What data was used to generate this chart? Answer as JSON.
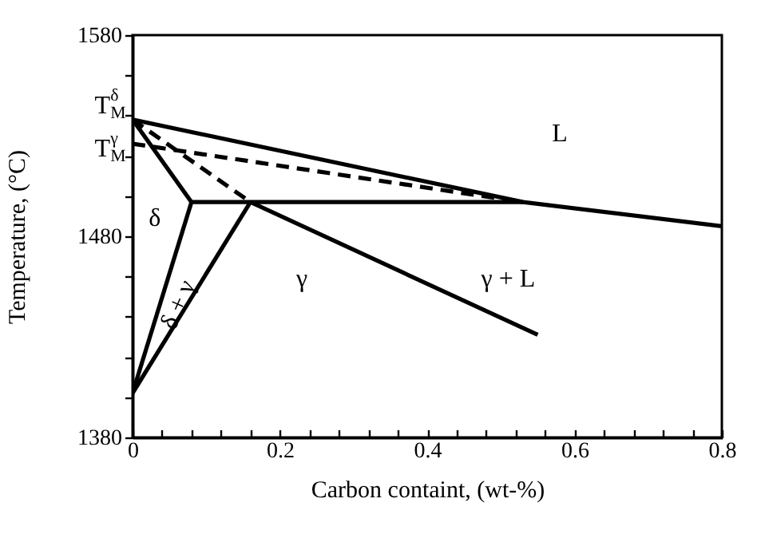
{
  "chart_data": {
    "type": "line",
    "xlabel": "Carbon containt, (wt-%)",
    "ylabel": "Temperature, (°C)",
    "xlim": [
      0,
      0.8
    ],
    "ylim": [
      1380,
      1580
    ],
    "xticks": [
      0,
      {
        "value": 0.04,
        "label": null
      },
      {
        "value": 0.08,
        "label": null
      },
      {
        "value": 0.12,
        "label": null
      },
      {
        "value": 0.16,
        "label": null
      },
      0.2,
      {
        "value": 0.24,
        "label": null
      },
      {
        "value": 0.28,
        "label": null
      },
      {
        "value": 0.32,
        "label": null
      },
      {
        "value": 0.36,
        "label": null
      },
      0.4,
      {
        "value": 0.44,
        "label": null
      },
      {
        "value": 0.48,
        "label": null
      },
      {
        "value": 0.52,
        "label": null
      },
      {
        "value": 0.56,
        "label": null
      },
      0.6,
      {
        "value": 0.64,
        "label": null
      },
      {
        "value": 0.68,
        "label": null
      },
      {
        "value": 0.72,
        "label": null
      },
      {
        "value": 0.76,
        "label": null
      },
      0.8
    ],
    "yticks": [
      1380,
      {
        "value": 1400,
        "label": null
      },
      {
        "value": 1420,
        "label": null
      },
      {
        "value": 1440,
        "label": null
      },
      {
        "value": 1460,
        "label": null
      },
      1480,
      {
        "value": 1500,
        "label": null
      },
      {
        "value": 1520,
        "label": null
      },
      {
        "value": 1540,
        "label": null
      },
      {
        "value": 1560,
        "label": null
      },
      1580
    ],
    "grid": false,
    "marker": "none",
    "series": [
      {
        "color": "#000000",
        "line_style": "solid",
        "x": [
          0,
          0.53,
          0.8
        ],
        "values": [
          1538,
          1497,
          1485
        ]
      },
      {
        "color": "#000000",
        "line_style": "solid",
        "x": [
          0,
          0.08
        ],
        "values": [
          1538,
          1497
        ]
      },
      {
        "color": "#000000",
        "line_style": "solid",
        "x": [
          0.08,
          0.53
        ],
        "values": [
          1497,
          1497
        ]
      },
      {
        "color": "#000000",
        "line_style": "dashed",
        "x": [
          0,
          0.53
        ],
        "values": [
          1526,
          1497
        ]
      },
      {
        "color": "#000000",
        "line_style": "dashed",
        "x": [
          0,
          0.16
        ],
        "values": [
          1538,
          1497
        ]
      },
      {
        "color": "#000000",
        "line_style": "solid",
        "x": [
          0,
          0.08
        ],
        "values": [
          1402,
          1497
        ]
      },
      {
        "color": "#000000",
        "line_style": "solid",
        "x": [
          0,
          0.16
        ],
        "values": [
          1402,
          1497
        ]
      },
      {
        "color": "#000000",
        "line_style": "solid",
        "x": [
          0.16,
          0.55
        ],
        "values": [
          1497,
          1431
        ]
      }
    ],
    "annotations": [
      "L",
      "δ",
      "δ + γ",
      "γ",
      "γ + L",
      {
        "text": "T$_{M}$$^{δ}$",
        "x": 0,
        "y": 1538
      },
      {
        "text": "T$_{M}$$^{γ}$",
        "x": 0,
        "y": 1526
      }
    ]
  }
}
